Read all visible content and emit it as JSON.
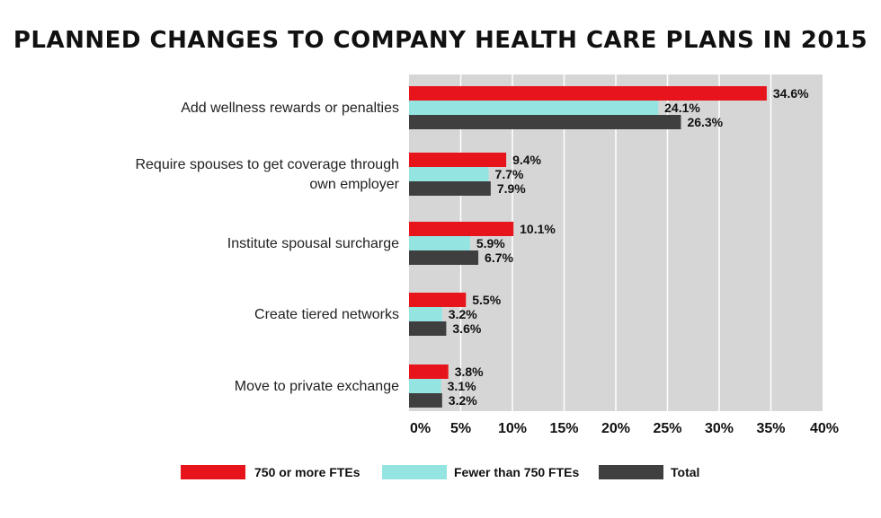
{
  "chart_data": {
    "type": "bar",
    "orientation": "horizontal",
    "title": "PLANNED CHANGES TO COMPANY HEALTH CARE PLANS IN 2015",
    "categories": [
      "Add wellness rewards or penalties",
      "Require spouses to get coverage through own employer",
      "Institute spousal surcharge",
      "Create tiered networks",
      "Move to private exchange"
    ],
    "category_lines": [
      [
        "Add wellness rewards or penalties"
      ],
      [
        "Require spouses to get coverage through",
        "own employer"
      ],
      [
        "Institute spousal surcharge"
      ],
      [
        "Create tiered networks"
      ],
      [
        "Move to private exchange"
      ]
    ],
    "series": [
      {
        "name": "750 or more FTEs",
        "color": "#e8141b",
        "values": [
          34.6,
          9.4,
          10.1,
          5.5,
          3.8
        ],
        "labels": [
          "34.6%",
          "9.4%",
          "10.1%",
          "5.5%",
          "3.8%"
        ]
      },
      {
        "name": "Fewer than 750 FTEs",
        "color": "#94e4e2",
        "values": [
          24.1,
          7.7,
          5.9,
          3.2,
          3.1
        ],
        "labels": [
          "24.1%",
          "7.7%",
          "5.9%",
          "3.2%",
          "3.1%"
        ]
      },
      {
        "name": "Total",
        "color": "#3f3f3f",
        "values": [
          26.3,
          7.9,
          6.7,
          3.6,
          3.2
        ],
        "labels": [
          "26.3%",
          "7.9%",
          "6.7%",
          "3.6%",
          "3.2%"
        ]
      }
    ],
    "xlim": [
      0,
      40
    ],
    "xticks": [
      0,
      5,
      10,
      15,
      20,
      25,
      30,
      35,
      40
    ],
    "xtick_labels": [
      "0%",
      "5%",
      "10%",
      "15%",
      "20%",
      "25%",
      "30%",
      "35%",
      "40%"
    ],
    "plot_background": "#d6d6d6",
    "grid": true,
    "gridline_color": "#ffffff",
    "legend_position": "bottom"
  }
}
